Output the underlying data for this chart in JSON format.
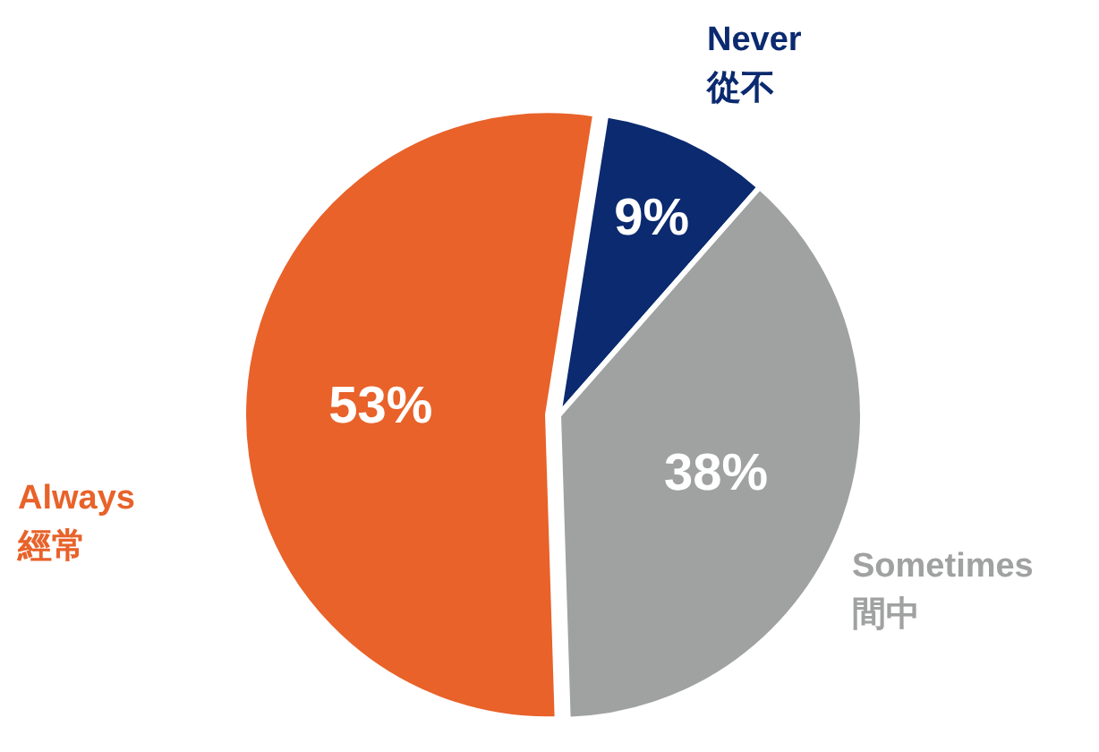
{
  "chart_data": {
    "type": "pie",
    "categories": [
      "Never\n從不",
      "Sometimes\n間中",
      "Always\n經常"
    ],
    "values": [
      9,
      38,
      53
    ],
    "colors": [
      "#0b2a6f",
      "#a0a1a1",
      "#e8622a"
    ],
    "value_labels": [
      "9%",
      "38%",
      "53%"
    ]
  }
}
